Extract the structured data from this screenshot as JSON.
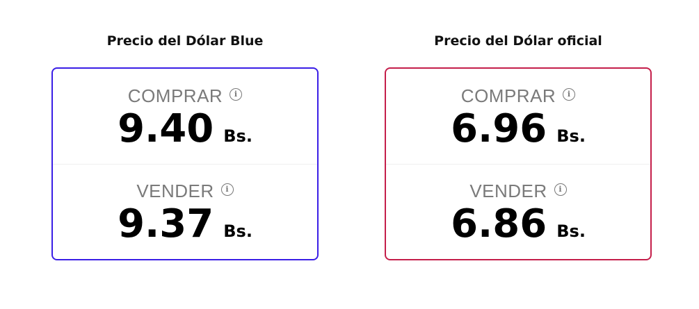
{
  "colors": {
    "blue_border": "#3a1ee6",
    "official_border": "#c41e4a"
  },
  "cards": [
    {
      "title": "Precio del Dólar Blue",
      "buy_label": "COMPRAR",
      "buy_value": "9.40",
      "sell_label": "VENDER",
      "sell_value": "9.37",
      "currency": "Bs.",
      "info_icon": "info-circle-icon"
    },
    {
      "title": "Precio del Dólar oficial",
      "buy_label": "COMPRAR",
      "buy_value": "6.96",
      "sell_label": "VENDER",
      "sell_value": "6.86",
      "currency": "Bs.",
      "info_icon": "info-circle-icon"
    }
  ]
}
